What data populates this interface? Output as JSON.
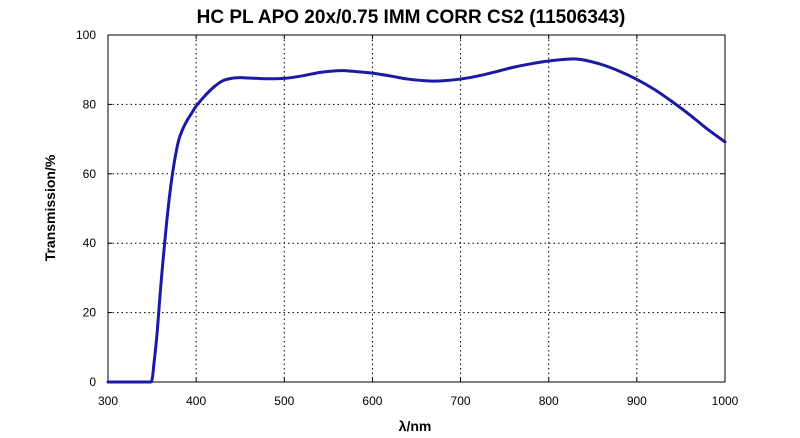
{
  "chart_data": {
    "type": "line",
    "title": "HC PL APO 20x/0.75 IMM CORR CS2 (11506343)",
    "xlabel": "λ/nm",
    "ylabel": "Transmission/%",
    "xlim": [
      300,
      1000
    ],
    "ylim": [
      0,
      100
    ],
    "xticks": [
      300,
      400,
      500,
      600,
      700,
      800,
      900,
      1000
    ],
    "yticks": [
      0,
      20,
      40,
      60,
      80,
      100
    ],
    "grid": true,
    "legend": "none",
    "line_color": "#1a1aa6",
    "series": [
      {
        "x": [
          300,
          320,
          340,
          349,
          352,
          356,
          360,
          365,
          370,
          375,
          380,
          385,
          390,
          395,
          400,
          410,
          420,
          430,
          440,
          450,
          460,
          480,
          500,
          520,
          540,
          560,
          570,
          580,
          600,
          620,
          640,
          660,
          670,
          680,
          700,
          720,
          740,
          760,
          780,
          800,
          820,
          830,
          840,
          860,
          880,
          900,
          920,
          940,
          960,
          980,
          1000
        ],
        "y": [
          0,
          0,
          0,
          0,
          5,
          15,
          28,
          42,
          54,
          63,
          69.5,
          73,
          75.5,
          77.5,
          79.5,
          82.5,
          85,
          86.8,
          87.5,
          87.7,
          87.6,
          87.4,
          87.5,
          88.2,
          89.2,
          89.7,
          89.7,
          89.5,
          89,
          88.2,
          87.3,
          86.8,
          86.7,
          86.8,
          87.3,
          88.2,
          89.4,
          90.7,
          91.7,
          92.5,
          93,
          93.1,
          92.8,
          91.5,
          89.6,
          87.2,
          84.3,
          80.8,
          77,
          72.9,
          69.2
        ]
      }
    ]
  }
}
